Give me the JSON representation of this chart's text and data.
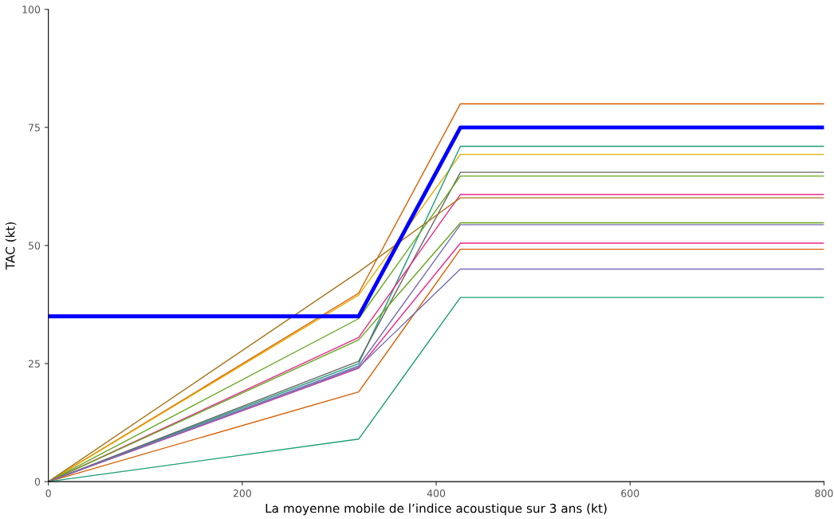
{
  "chart_data": {
    "type": "line",
    "xlabel": "La moyenne mobile de l’indice acoustique sur 3 ans (kt)",
    "ylabel": "TAC (kt)",
    "x": [
      0,
      320,
      425,
      800
    ],
    "xlim": [
      0,
      800
    ],
    "xticks": [
      0,
      200,
      400,
      600,
      800
    ],
    "ylim": [
      0,
      100
    ],
    "yticks": [
      0,
      25,
      50,
      75,
      100
    ],
    "grid": false,
    "legend": false,
    "series": [
      {
        "color": "#d95f02",
        "values": [
          0,
          39.9,
          80,
          80
        ]
      },
      {
        "color": "#e6ab02",
        "values": [
          0,
          39.5,
          69.3,
          69.3
        ]
      },
      {
        "color": "#1b9e77",
        "values": [
          0,
          25,
          71,
          71
        ]
      },
      {
        "color": "#666666",
        "values": [
          0,
          25.5,
          65.5,
          65.5
        ]
      },
      {
        "color": "#66a61e",
        "values": [
          0,
          34.5,
          64.7,
          64.7
        ]
      },
      {
        "color": "#e7298a",
        "values": [
          0,
          30.5,
          60.8,
          60.8
        ]
      },
      {
        "color": "#a6761d",
        "values": [
          0,
          44.4,
          60.1,
          60.1
        ]
      },
      {
        "color": "#66a61e",
        "values": [
          0,
          30,
          54.8,
          54.8
        ]
      },
      {
        "color": "#7570b3",
        "values": [
          0,
          24.5,
          54.4,
          54.4
        ]
      },
      {
        "color": "#e7298a",
        "values": [
          0,
          24,
          50.5,
          50.5
        ]
      },
      {
        "color": "#d95f02",
        "values": [
          0,
          19,
          49.2,
          49.2
        ]
      },
      {
        "color": "#7570b3",
        "values": [
          0,
          24.2,
          45,
          45
        ]
      },
      {
        "color": "#1b9e77",
        "values": [
          0,
          9,
          39,
          39
        ]
      },
      {
        "color": "#0000ff",
        "values": [
          35,
          35,
          75,
          75
        ]
      }
    ]
  }
}
